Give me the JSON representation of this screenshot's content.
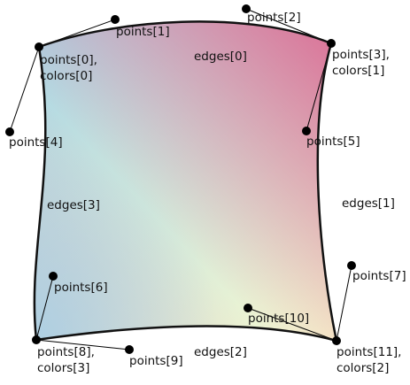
{
  "patch": {
    "corner_colors": {
      "top_left": "#a8d4e6",
      "top_right": "#db6a93",
      "bottom_right": "#fbfbcf",
      "bottom_left": "#a2c8e6"
    },
    "outline_color": "#111111",
    "handle_color": "#000000"
  },
  "labels": {
    "points_0": "points[0],",
    "colors_0": "colors[0]",
    "points_1": "points[1]",
    "points_2": "points[2]",
    "points_3": "points[3],",
    "colors_1": "colors[1]",
    "points_4": "points[4]",
    "points_5": "points[5]",
    "points_6": "points[6]",
    "points_7": "points[7]",
    "points_8": "points[8],",
    "colors_3": "colors[3]",
    "points_9": "points[9]",
    "points_10": "points[10]",
    "points_11": "points[11],",
    "colors_2": "colors[2]",
    "edges_0": "edges[0]",
    "edges_1": "edges[1]",
    "edges_2": "edges[2]",
    "edges_3": "edges[3]"
  }
}
